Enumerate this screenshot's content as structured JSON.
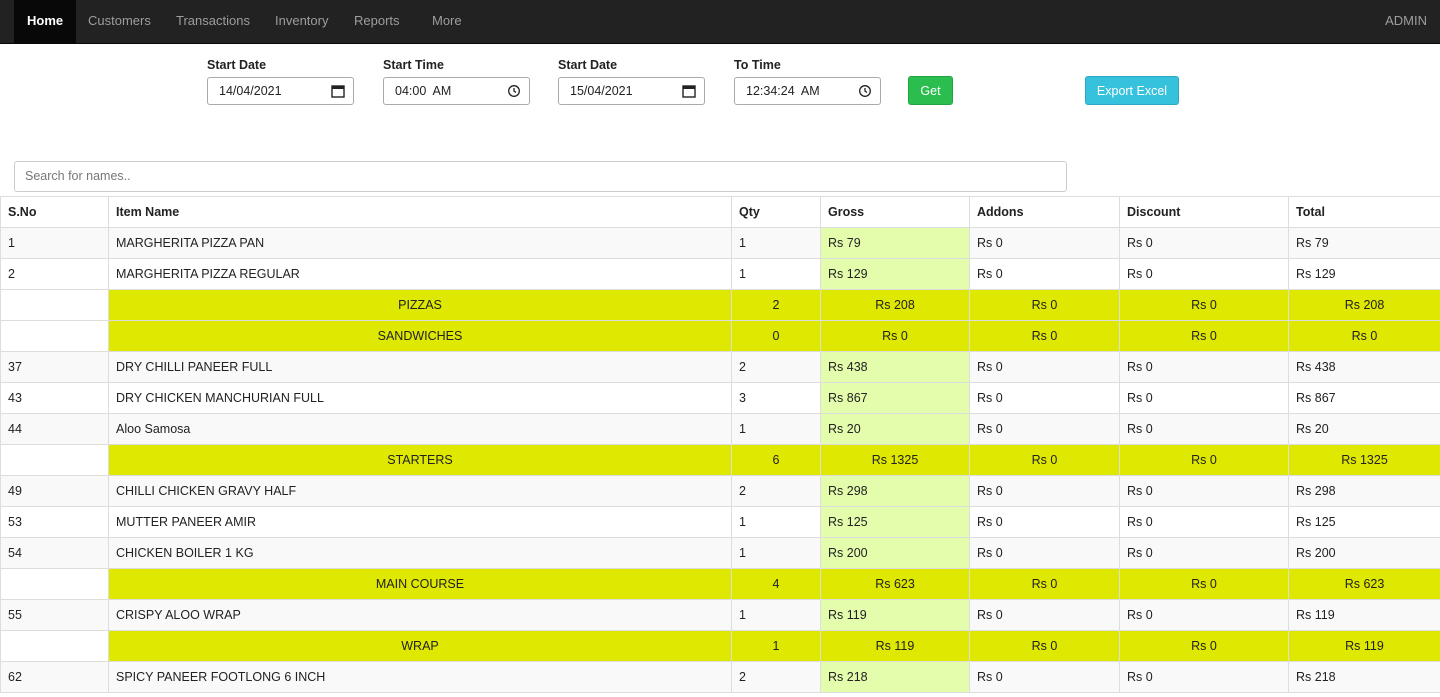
{
  "nav": {
    "items": [
      "Home",
      "Customers",
      "Transactions",
      "Inventory",
      "Reports",
      "More"
    ],
    "right": "ADMIN"
  },
  "filters": {
    "start_date_label": "Start Date",
    "start_date_value": "14/04/2021",
    "start_time_label": "Start Time",
    "start_time_value": "04:00  AM",
    "end_date_label": "Start Date",
    "end_date_value": "15/04/2021",
    "to_time_label": "To Time",
    "to_time_value": "12:34:24  AM",
    "get_label": "Get",
    "export_label": "Export Excel"
  },
  "search": {
    "placeholder": "Search for names.."
  },
  "table": {
    "headers": [
      "S.No",
      "Item Name",
      "Qty",
      "Gross",
      "Addons",
      "Discount",
      "Total"
    ],
    "rows": [
      {
        "type": "item",
        "sno": "1",
        "name": "MARGHERITA PIZZA PAN",
        "qty": "1",
        "gross": "Rs 79",
        "addons": "Rs 0",
        "discount": "Rs 0",
        "total": "Rs 79"
      },
      {
        "type": "item",
        "sno": "2",
        "name": "MARGHERITA PIZZA REGULAR",
        "qty": "1",
        "gross": "Rs 129",
        "addons": "Rs 0",
        "discount": "Rs 0",
        "total": "Rs 129"
      },
      {
        "type": "cat",
        "sno": "",
        "name": "PIZZAS",
        "qty": "2",
        "gross": "Rs 208",
        "addons": "Rs 0",
        "discount": "Rs 0",
        "total": "Rs 208"
      },
      {
        "type": "cat",
        "sno": "",
        "name": "SANDWICHES",
        "qty": "0",
        "gross": "Rs 0",
        "addons": "Rs 0",
        "discount": "Rs 0",
        "total": "Rs 0"
      },
      {
        "type": "item",
        "sno": "37",
        "name": "DRY CHILLI PANEER FULL",
        "qty": "2",
        "gross": "Rs 438",
        "addons": "Rs 0",
        "discount": "Rs 0",
        "total": "Rs 438"
      },
      {
        "type": "item",
        "sno": "43",
        "name": "DRY CHICKEN MANCHURIAN FULL",
        "qty": "3",
        "gross": "Rs 867",
        "addons": "Rs 0",
        "discount": "Rs 0",
        "total": "Rs 867"
      },
      {
        "type": "item",
        "sno": "44",
        "name": "Aloo Samosa",
        "qty": "1",
        "gross": "Rs 20",
        "addons": "Rs 0",
        "discount": "Rs 0",
        "total": "Rs 20"
      },
      {
        "type": "cat",
        "sno": "",
        "name": "STARTERS",
        "qty": "6",
        "gross": "Rs 1325",
        "addons": "Rs 0",
        "discount": "Rs 0",
        "total": "Rs 1325"
      },
      {
        "type": "item",
        "sno": "49",
        "name": "CHILLI CHICKEN GRAVY HALF",
        "qty": "2",
        "gross": "Rs 298",
        "addons": "Rs 0",
        "discount": "Rs 0",
        "total": "Rs 298"
      },
      {
        "type": "item",
        "sno": "53",
        "name": "MUTTER PANEER AMIR",
        "qty": "1",
        "gross": "Rs 125",
        "addons": "Rs 0",
        "discount": "Rs 0",
        "total": "Rs 125"
      },
      {
        "type": "item",
        "sno": "54",
        "name": "CHICKEN BOILER 1 KG",
        "qty": "1",
        "gross": "Rs 200",
        "addons": "Rs 0",
        "discount": "Rs 0",
        "total": "Rs 200"
      },
      {
        "type": "cat",
        "sno": "",
        "name": "MAIN COURSE",
        "qty": "4",
        "gross": "Rs 623",
        "addons": "Rs 0",
        "discount": "Rs 0",
        "total": "Rs 623"
      },
      {
        "type": "item",
        "sno": "55",
        "name": "CRISPY ALOO WRAP",
        "qty": "1",
        "gross": "Rs 119",
        "addons": "Rs 0",
        "discount": "Rs 0",
        "total": "Rs 119"
      },
      {
        "type": "cat",
        "sno": "",
        "name": "WRAP",
        "qty": "1",
        "gross": "Rs 119",
        "addons": "Rs 0",
        "discount": "Rs 0",
        "total": "Rs 119"
      },
      {
        "type": "item",
        "sno": "62",
        "name": "SPICY PANEER FOOTLONG 6 INCH",
        "qty": "2",
        "gross": "Rs 218",
        "addons": "Rs 0",
        "discount": "Rs 0",
        "total": "Rs 218"
      }
    ]
  },
  "colors": {
    "navbar": "#222222",
    "category_row": "#dfe800",
    "gross_cell": "#e4fdac",
    "get_button": "#2bbe4e",
    "export_button": "#36c2dc"
  }
}
